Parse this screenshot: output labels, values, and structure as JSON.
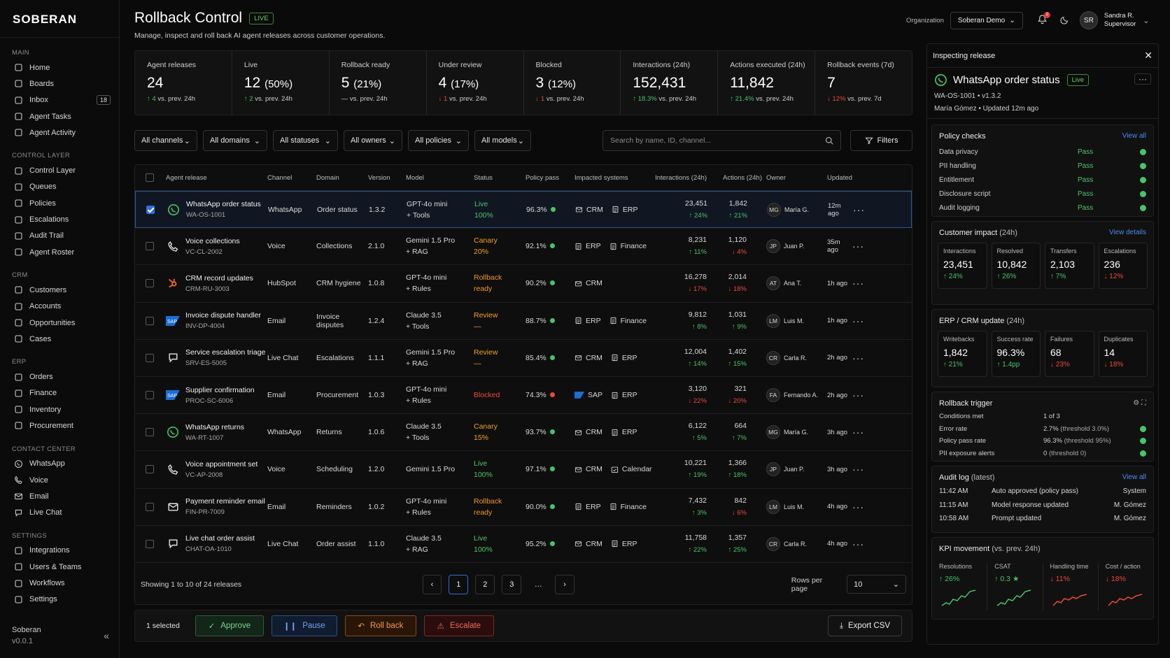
{
  "app": {
    "logo": "SOBERAN",
    "footer_name": "Soberan",
    "footer_version": "v0.0.1"
  },
  "sidebar": [
    {
      "header": "MAIN",
      "items": [
        {
          "label": "Home",
          "icon": "home-icon"
        },
        {
          "label": "Boards",
          "icon": "boards-icon"
        },
        {
          "label": "Inbox",
          "icon": "inbox-icon",
          "badge": "18"
        },
        {
          "label": "Agent Tasks",
          "icon": "tasks-icon"
        },
        {
          "label": "Agent Activity",
          "icon": "activity-icon"
        }
      ]
    },
    {
      "header": "CONTROL LAYER",
      "items": [
        {
          "label": "Control Layer",
          "icon": "layers-icon"
        },
        {
          "label": "Queues",
          "icon": "queues-icon"
        },
        {
          "label": "Policies",
          "icon": "policies-icon"
        },
        {
          "label": "Escalations",
          "icon": "warning-icon"
        },
        {
          "label": "Audit Trail",
          "icon": "audit-icon"
        },
        {
          "label": "Agent Roster",
          "icon": "roster-icon"
        }
      ]
    },
    {
      "header": "CRM",
      "items": [
        {
          "label": "Customers",
          "icon": "customers-icon"
        },
        {
          "label": "Accounts",
          "icon": "accounts-icon"
        },
        {
          "label": "Opportunities",
          "icon": "opportunities-icon"
        },
        {
          "label": "Cases",
          "icon": "cases-icon"
        }
      ]
    },
    {
      "header": "ERP",
      "items": [
        {
          "label": "Orders",
          "icon": "cart-icon"
        },
        {
          "label": "Finance",
          "icon": "finance-icon"
        },
        {
          "label": "Inventory",
          "icon": "inventory-icon"
        },
        {
          "label": "Procurement",
          "icon": "procurement-icon"
        }
      ]
    },
    {
      "header": "CONTACT CENTER",
      "items": [
        {
          "label": "WhatsApp",
          "icon": "whatsapp-icon"
        },
        {
          "label": "Voice",
          "icon": "phone-icon"
        },
        {
          "label": "Email",
          "icon": "mail-icon"
        },
        {
          "label": "Live Chat",
          "icon": "chat-icon"
        }
      ]
    },
    {
      "header": "SETTINGS",
      "items": [
        {
          "label": "Integrations",
          "icon": "integrations-icon"
        },
        {
          "label": "Users & Teams",
          "icon": "users-icon"
        },
        {
          "label": "Workflows",
          "icon": "workflows-icon"
        },
        {
          "label": "Settings",
          "icon": "gear-icon"
        }
      ]
    }
  ],
  "header": {
    "title": "Rollback Control",
    "live": "LIVE",
    "subtitle": "Manage, inspect and roll back AI agent releases across customer operations.",
    "org_label": "Organization",
    "org_value": "Soberan Demo",
    "notif_count": "2",
    "user_initials": "SR",
    "user_name": "Sandra R.",
    "user_role": "Supervisor"
  },
  "kpis": [
    {
      "label": "Agent releases",
      "value": "24",
      "pct": "",
      "delta": "4",
      "trend": "up",
      "note": "vs. prev. 24h"
    },
    {
      "label": "Live",
      "value": "12",
      "pct": "(50%)",
      "delta": "2",
      "trend": "up",
      "note": "vs. prev. 24h"
    },
    {
      "label": "Rollback ready",
      "value": "5",
      "pct": "(21%)",
      "delta": "—",
      "trend": "flat",
      "note": "vs. prev. 24h"
    },
    {
      "label": "Under review",
      "value": "4",
      "pct": "(17%)",
      "delta": "1",
      "trend": "down",
      "note": "vs. prev. 24h"
    },
    {
      "label": "Blocked",
      "value": "3",
      "pct": "(12%)",
      "delta": "1",
      "trend": "down",
      "note": "vs. prev. 24h"
    },
    {
      "label": "Interactions (24h)",
      "value": "152,431",
      "pct": "",
      "delta": "18.3%",
      "trend": "up",
      "note": "vs. prev. 24h"
    },
    {
      "label": "Actions executed (24h)",
      "value": "11,842",
      "pct": "",
      "delta": "21.4%",
      "trend": "up",
      "note": "vs. prev. 24h"
    },
    {
      "label": "Rollback events (7d)",
      "value": "7",
      "pct": "",
      "delta": "12%",
      "trend": "down",
      "note": "vs. prev. 7d"
    }
  ],
  "filters": [
    "All channels",
    "All domains",
    "All statuses",
    "All owners",
    "All policies",
    "All models"
  ],
  "search_placeholder": "Search by name, ID, channel...",
  "filters_btn": "Filters",
  "columns": [
    "Agent release",
    "Channel",
    "Domain",
    "Version",
    "Model",
    "Status",
    "Policy pass",
    "Impacted systems",
    "Interactions (24h)",
    "Actions (24h)",
    "Owner",
    "Updated"
  ],
  "rows": [
    {
      "name": "WhatsApp order status",
      "id": "WA-OS-1001",
      "icon": "whatsapp",
      "channel": "WhatsApp",
      "domain": "Order status",
      "version": "1.3.2",
      "model": "GPT-4o mini",
      "model2": "+ Tools",
      "status": "Live",
      "status2": "100%",
      "st": "live",
      "policy": "96.3%",
      "pdot": "green",
      "sys": [
        [
          "mail",
          "CRM"
        ],
        [
          "doc",
          "ERP"
        ]
      ],
      "inter": "23,451",
      "idelta": "24%",
      "itr": "up",
      "act": "1,842",
      "adelta": "21%",
      "atr": "up",
      "owner_i": "MG",
      "owner": "María G.",
      "updated": "12m ago",
      "selected": true
    },
    {
      "name": "Voice collections",
      "id": "VC-CL-2002",
      "icon": "phone",
      "channel": "Voice",
      "domain": "Collections",
      "version": "2.1.0",
      "model": "Gemini 1.5 Pro",
      "model2": "+ RAG",
      "status": "Canary",
      "status2": "20%",
      "st": "canary",
      "policy": "92.1%",
      "pdot": "green",
      "sys": [
        [
          "doc",
          "ERP"
        ],
        [
          "doc",
          "Finance"
        ]
      ],
      "inter": "8,231",
      "idelta": "11%",
      "itr": "up",
      "act": "1,120",
      "adelta": "4%",
      "atr": "down",
      "owner_i": "JP",
      "owner": "Juan P.",
      "updated": "35m ago"
    },
    {
      "name": "CRM record updates",
      "id": "CRM-RU-3003",
      "icon": "hubspot",
      "channel": "HubSpot",
      "domain": "CRM hygiene",
      "version": "1.0.8",
      "model": "GPT-4o mini",
      "model2": "+ Rules",
      "status": "Rollback",
      "status2": "ready",
      "st": "rb",
      "policy": "90.2%",
      "pdot": "green",
      "sys": [
        [
          "mail",
          "CRM"
        ]
      ],
      "inter": "16,278",
      "idelta": "17%",
      "itr": "down",
      "act": "2,014",
      "adelta": "18%",
      "atr": "down",
      "owner_i": "AT",
      "owner": "Ana T.",
      "updated": "1h ago"
    },
    {
      "name": "Invoice dispute handler",
      "id": "INV-DP-4004",
      "icon": "sap",
      "channel": "Email",
      "domain": "Invoice disputes",
      "version": "1.2.4",
      "model": "Claude 3.5",
      "model2": "+ Tools",
      "status": "Review",
      "status2": "—",
      "st": "review",
      "policy": "88.7%",
      "pdot": "green",
      "sys": [
        [
          "doc",
          "ERP"
        ],
        [
          "doc",
          "Finance"
        ]
      ],
      "inter": "9,812",
      "idelta": "8%",
      "itr": "up",
      "act": "1,031",
      "adelta": "9%",
      "atr": "up",
      "owner_i": "LM",
      "owner": "Luis M.",
      "updated": "1h ago"
    },
    {
      "name": "Service escalation triage",
      "id": "SRV-ES-5005",
      "icon": "chat",
      "channel": "Live Chat",
      "domain": "Escalations",
      "version": "1.1.1",
      "model": "Gemini 1.5 Pro",
      "model2": "+ RAG",
      "status": "Review",
      "status2": "—",
      "st": "review",
      "policy": "85.4%",
      "pdot": "green",
      "sys": [
        [
          "mail",
          "CRM"
        ],
        [
          "doc",
          "ERP"
        ]
      ],
      "inter": "12,004",
      "idelta": "14%",
      "itr": "up",
      "act": "1,402",
      "adelta": "15%",
      "atr": "up",
      "owner_i": "CR",
      "owner": "Carla R.",
      "updated": "2h ago"
    },
    {
      "name": "Supplier confirmation",
      "id": "PROC-SC-6006",
      "icon": "sap",
      "channel": "Email",
      "domain": "Procurement",
      "version": "1.0.3",
      "model": "GPT-4o mini",
      "model2": "+ Rules",
      "status": "Blocked",
      "status2": "",
      "st": "blocked",
      "policy": "74.3%",
      "pdot": "red",
      "sys": [
        [
          "sap",
          "SAP"
        ],
        [
          "doc",
          "ERP"
        ]
      ],
      "inter": "3,120",
      "idelta": "22%",
      "itr": "down",
      "act": "321",
      "adelta": "20%",
      "atr": "down",
      "owner_i": "FA",
      "owner": "Fernando A.",
      "updated": "2h ago"
    },
    {
      "name": "WhatsApp returns",
      "id": "WA-RT-1007",
      "icon": "whatsapp",
      "channel": "WhatsApp",
      "domain": "Returns",
      "version": "1.0.6",
      "model": "Claude 3.5",
      "model2": "+ Tools",
      "status": "Canary",
      "status2": "15%",
      "st": "canary",
      "policy": "93.7%",
      "pdot": "green",
      "sys": [
        [
          "mail",
          "CRM"
        ],
        [
          "doc",
          "ERP"
        ]
      ],
      "inter": "6,122",
      "idelta": "5%",
      "itr": "up",
      "act": "664",
      "adelta": "7%",
      "atr": "up",
      "owner_i": "MG",
      "owner": "María G.",
      "updated": "3h ago"
    },
    {
      "name": "Voice appointment set",
      "id": "VC-AP-2008",
      "icon": "phone",
      "channel": "Voice",
      "domain": "Scheduling",
      "version": "1.2.0",
      "model": "Gemini 1.5 Pro",
      "model2": "",
      "status": "Live",
      "status2": "100%",
      "st": "live",
      "policy": "97.1%",
      "pdot": "green",
      "sys": [
        [
          "mail",
          "CRM"
        ],
        [
          "cal",
          "Calendar"
        ]
      ],
      "inter": "10,221",
      "idelta": "19%",
      "itr": "up",
      "act": "1,366",
      "adelta": "18%",
      "atr": "up",
      "owner_i": "JP",
      "owner": "Juan P.",
      "updated": "3h ago"
    },
    {
      "name": "Payment reminder email",
      "id": "FIN-PR-7009",
      "icon": "mail",
      "channel": "Email",
      "domain": "Reminders",
      "version": "1.0.2",
      "model": "GPT-4o mini",
      "model2": "+ Rules",
      "status": "Rollback",
      "status2": "ready",
      "st": "rb",
      "policy": "90.0%",
      "pdot": "green",
      "sys": [
        [
          "doc",
          "ERP"
        ],
        [
          "doc",
          "Finance"
        ]
      ],
      "inter": "7,432",
      "idelta": "3%",
      "itr": "up",
      "act": "842",
      "adelta": "6%",
      "atr": "down",
      "owner_i": "LM",
      "owner": "Luis M.",
      "updated": "4h ago"
    },
    {
      "name": "Live chat order assist",
      "id": "CHAT-OA-1010",
      "icon": "chat",
      "channel": "Live Chat",
      "domain": "Order assist",
      "version": "1.1.0",
      "model": "Claude 3.5",
      "model2": "+ RAG",
      "status": "Live",
      "status2": "100%",
      "st": "live",
      "policy": "95.2%",
      "pdot": "green",
      "sys": [
        [
          "mail",
          "CRM"
        ],
        [
          "doc",
          "ERP"
        ]
      ],
      "inter": "11,758",
      "idelta": "22%",
      "itr": "up",
      "act": "1,357",
      "adelta": "25%",
      "atr": "up",
      "owner_i": "CR",
      "owner": "Carla R.",
      "updated": "4h ago"
    }
  ],
  "pager": {
    "showing": "Showing 1 to 10 of 24 releases",
    "pages": [
      "1",
      "2",
      "3",
      "…"
    ],
    "rows_label": "Rows per page",
    "rows_value": "10"
  },
  "actions": {
    "selected": "1 selected",
    "approve": "Approve",
    "pause": "Pause",
    "rollback": "Roll back",
    "escalate": "Escalate",
    "export": "Export CSV"
  },
  "panel": {
    "header": "Inspecting release",
    "name": "WhatsApp order status",
    "live": "Live",
    "id": "WA-OS-1001",
    "version": "v1.3.2",
    "owner": "María Gómez",
    "updated": "Updated 12m ago",
    "policy_title": "Policy checks",
    "view_all": "View all",
    "checks": [
      [
        "Data privacy",
        "Pass"
      ],
      [
        "PII handling",
        "Pass"
      ],
      [
        "Entitlement",
        "Pass"
      ],
      [
        "Disclosure script",
        "Pass"
      ],
      [
        "Audit logging",
        "Pass"
      ]
    ],
    "impact_title": "Customer impact",
    "impact_sub": "(24h)",
    "view_details": "View details",
    "impact": [
      {
        "l": "Interactions",
        "n": "23,451",
        "d": "24%",
        "t": "up"
      },
      {
        "l": "Resolved",
        "n": "10,842",
        "d": "26%",
        "t": "up"
      },
      {
        "l": "Transfers",
        "n": "2,103",
        "d": "7%",
        "t": "up"
      },
      {
        "l": "Escalations",
        "n": "236",
        "d": "12%",
        "t": "down"
      }
    ],
    "erp_title": "ERP / CRM update",
    "erp_sub": "(24h)",
    "erp": [
      {
        "l": "Writebacks",
        "n": "1,842",
        "d": "21%",
        "t": "up"
      },
      {
        "l": "Success rate",
        "n": "96.3%",
        "d": "1.4pp",
        "t": "up"
      },
      {
        "l": "Failures",
        "n": "68",
        "d": "23%",
        "t": "down"
      },
      {
        "l": "Duplicates",
        "n": "14",
        "d": "18%",
        "t": "down"
      }
    ],
    "trigger_title": "Rollback trigger",
    "trigger": [
      [
        "Conditions met",
        "1 of 3",
        ""
      ],
      [
        "Error rate",
        "2.7%",
        "(threshold 3.0%)"
      ],
      [
        "Policy pass rate",
        "96.3%",
        "(threshold 95%)"
      ],
      [
        "PII exposure alerts",
        "0",
        "(threshold 0)"
      ]
    ],
    "audit_title": "Audit log",
    "audit_sub": "(latest)",
    "audit": [
      [
        "11:42 AM",
        "Auto approved (policy pass)",
        "System"
      ],
      [
        "11:15 AM",
        "Model response updated",
        "M. Gómez"
      ],
      [
        "10:58 AM",
        "Prompt updated",
        "M. Gómez"
      ]
    ],
    "kpi_title": "KPI movement",
    "kpi_sub": "(vs. prev. 24h)",
    "kpim": [
      {
        "l": "Resolutions",
        "d": "26%",
        "t": "up",
        "star": ""
      },
      {
        "l": "CSAT",
        "d": "0.3",
        "t": "up",
        "star": "★"
      },
      {
        "l": "Handling time",
        "d": "11%",
        "t": "down",
        "star": ""
      },
      {
        "l": "Cost / action",
        "d": "18%",
        "t": "down",
        "star": ""
      }
    ]
  },
  "colors": {
    "green": "#46c46a",
    "red": "#e94a3a",
    "blue": "#2f6fd6",
    "orange": "#f0a322"
  }
}
